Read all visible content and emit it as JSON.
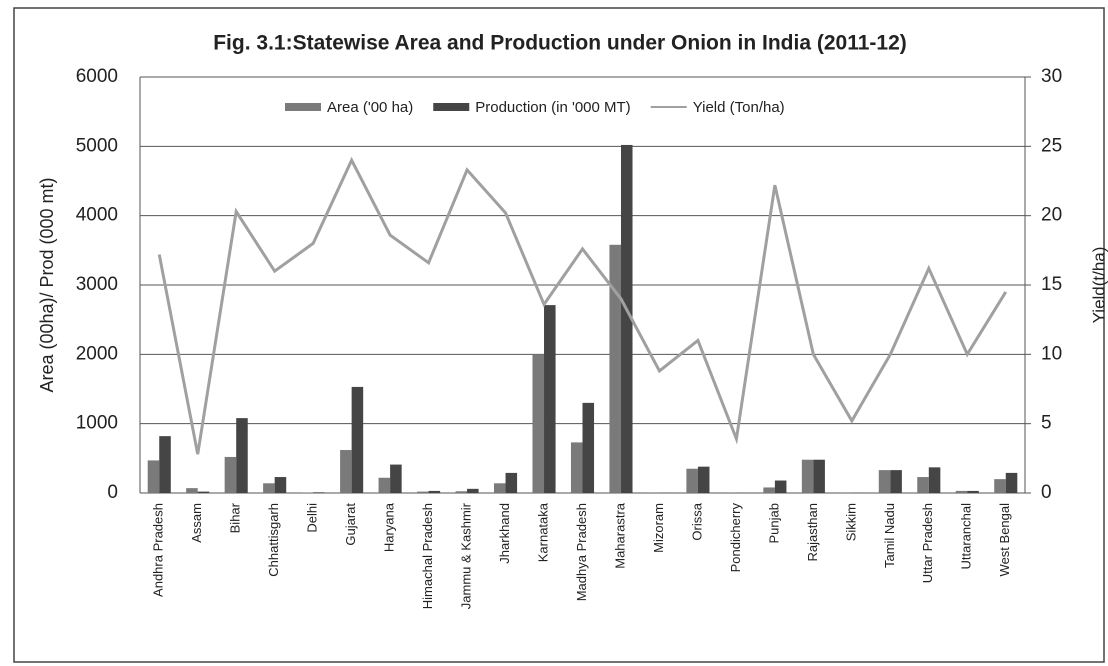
{
  "chart_data": {
    "type": "bar_line",
    "title": "Fig. 3.1:Statewise Area and Production under Onion in India (2011-12)",
    "y_label": "Area  (00ha)/ Prod (000 mt)",
    "y2_label": "Yield(t/ha)",
    "categories": [
      "Andhra Pradesh",
      "Assam",
      "Bihar",
      "Chhattisgarh",
      "Delhi",
      "Gujarat",
      "Haryana",
      "Himachal Pradesh",
      "Jammu & Kashmir",
      "Jharkhand",
      "Karnataka",
      "Madhya Pradesh",
      "Maharastra",
      "Mizoram",
      "Orissa",
      "Pondicherry",
      "Punjab",
      "Rajasthan",
      "Sikkim",
      "Tamil Nadu",
      "Uttar Pradesh",
      "Uttaranchal",
      "West Bengal"
    ],
    "series": [
      {
        "name": "Area ('00 ha)",
        "type": "bar",
        "color": "#7a7a7a",
        "values": [
          470,
          70,
          520,
          140,
          5,
          620,
          220,
          20,
          25,
          140,
          2000,
          730,
          3580,
          2,
          350,
          2,
          80,
          480,
          2,
          330,
          230,
          30,
          200
        ]
      },
      {
        "name": "Production (in '000 MT)",
        "type": "bar",
        "color": "#454545",
        "values": [
          820,
          20,
          1080,
          230,
          10,
          1530,
          410,
          30,
          60,
          290,
          2710,
          1300,
          5020,
          2,
          380,
          2,
          180,
          480,
          2,
          330,
          370,
          30,
          290
        ]
      },
      {
        "name": "Yield (Ton/ha)",
        "type": "line",
        "axis": "y2",
        "color": "#a0a0a0",
        "values": [
          17.2,
          2.8,
          20.3,
          16,
          18,
          24,
          18.6,
          16.6,
          23.3,
          20.2,
          13.6,
          17.6,
          14,
          8.8,
          11,
          3.9,
          22.2,
          10,
          5.2,
          10,
          16.2,
          10,
          14.5
        ]
      }
    ],
    "ylim": [
      0,
      6000
    ],
    "yticks": [
      0,
      1000,
      2000,
      3000,
      4000,
      5000,
      6000
    ],
    "y2lim": [
      0,
      30
    ],
    "y2ticks": [
      0,
      5,
      10,
      15,
      20,
      25,
      30
    ],
    "grid": true,
    "legend": "top"
  }
}
